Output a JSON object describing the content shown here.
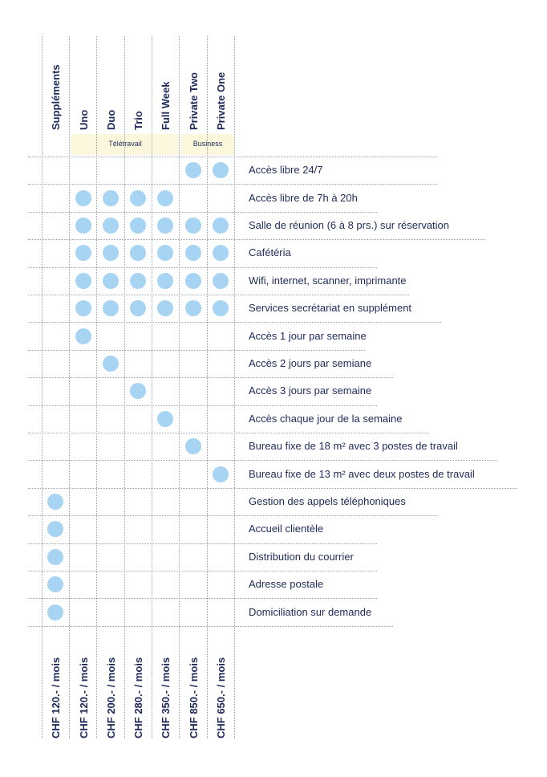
{
  "columns": [
    {
      "header": "Suppléments",
      "price": "CHF 120.- / mois"
    },
    {
      "header": "Uno",
      "price": "CHF 120.- / mois"
    },
    {
      "header": "Duo",
      "price": "CHF 200.- / mois"
    },
    {
      "header": "Trio",
      "price": "CHF 280.- / mois"
    },
    {
      "header": "Full Week",
      "price": "CHF 350.- / mois"
    },
    {
      "header": "Private Two",
      "price": "CHF 850.- / mois"
    },
    {
      "header": "Private One",
      "price": "CHF 650.- / mois"
    }
  ],
  "groups": {
    "teletravail": "Télétravail",
    "business": "Business"
  },
  "accent_color": "#a7d4f3",
  "text_color": "#1e2a5a",
  "rows": [
    {
      "label": "Accès libre 24/7",
      "marks": [
        0,
        0,
        0,
        0,
        0,
        1,
        1
      ]
    },
    {
      "label": "Accès libre de 7h à 20h",
      "marks": [
        0,
        1,
        1,
        1,
        1,
        0,
        0
      ]
    },
    {
      "label": "Salle de réunion (6 à 8 prs.) sur réservation",
      "marks": [
        0,
        1,
        1,
        1,
        1,
        1,
        1
      ]
    },
    {
      "label": "Cafétéria",
      "marks": [
        0,
        1,
        1,
        1,
        1,
        1,
        1
      ]
    },
    {
      "label": "Wifi, internet, scanner, imprimante",
      "marks": [
        0,
        1,
        1,
        1,
        1,
        1,
        1
      ]
    },
    {
      "label": "Services secrétariat en supplément",
      "marks": [
        0,
        1,
        1,
        1,
        1,
        1,
        1
      ]
    },
    {
      "label": "Accès 1 jour par semaine",
      "marks": [
        0,
        1,
        0,
        0,
        0,
        0,
        0
      ]
    },
    {
      "label": "Accès 2 jours par semiane",
      "marks": [
        0,
        0,
        1,
        0,
        0,
        0,
        0
      ]
    },
    {
      "label": "Accès 3 jours par semaine",
      "marks": [
        0,
        0,
        0,
        1,
        0,
        0,
        0
      ]
    },
    {
      "label": "Accès chaque jour de la semaine",
      "marks": [
        0,
        0,
        0,
        0,
        1,
        0,
        0
      ]
    },
    {
      "label": "Bureau fixe de 18 m² avec 3 postes de travail",
      "marks": [
        0,
        0,
        0,
        0,
        0,
        1,
        0
      ]
    },
    {
      "label": "Bureau fixe de 13 m² avec deux postes de travail",
      "marks": [
        0,
        0,
        0,
        0,
        0,
        0,
        1
      ]
    },
    {
      "label": "Gestion des appels téléphoniques",
      "marks": [
        1,
        0,
        0,
        0,
        0,
        0,
        0
      ]
    },
    {
      "label": "Accueil clientèle",
      "marks": [
        1,
        0,
        0,
        0,
        0,
        0,
        0
      ]
    },
    {
      "label": "Distribution du courrier",
      "marks": [
        1,
        0,
        0,
        0,
        0,
        0,
        0
      ]
    },
    {
      "label": "Adresse postale",
      "marks": [
        1,
        0,
        0,
        0,
        0,
        0,
        0
      ]
    },
    {
      "label": "Domiciliation sur demande",
      "marks": [
        1,
        0,
        0,
        0,
        0,
        0,
        0
      ]
    }
  ]
}
